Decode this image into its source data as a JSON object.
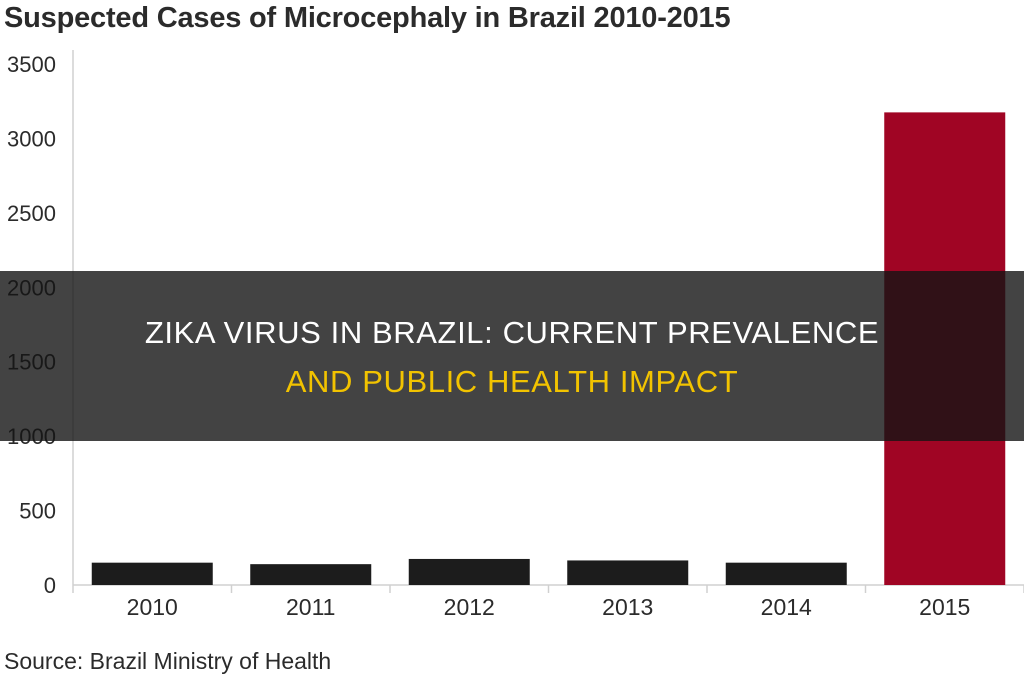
{
  "chart_data": {
    "type": "bar",
    "title": "Suspected Cases of Microcephaly in Brazil 2010-2015",
    "xlabel": "",
    "ylabel": "",
    "categories": [
      "2010",
      "2011",
      "2012",
      "2013",
      "2014",
      "2015"
    ],
    "values": [
      150,
      140,
      175,
      165,
      150,
      3175
    ],
    "ylim": [
      0,
      3500
    ],
    "yticks": [
      "0",
      "500",
      "1000",
      "1500",
      "2000",
      "2500",
      "3000",
      "3500"
    ],
    "ytick_values": [
      0,
      500,
      1000,
      1500,
      2000,
      2500,
      3000,
      3500
    ],
    "grid": false,
    "legend": "none",
    "colors": {
      "default_bar": "#1c1c1c",
      "highlight_bar": "#a00524",
      "axis": "#d0d0d0",
      "tick_text": "#2b2b2b"
    },
    "highlight_index": 5
  },
  "source": "Source: Brazil Ministry of Health",
  "overlay": {
    "line1": "ZIKA VIRUS IN BRAZIL: CURRENT PREVALENCE",
    "line2": "AND PUBLIC HEALTH IMPACT",
    "band_color": "#141414",
    "line1_color": "#ffffff",
    "line2_color": "#f2c300"
  }
}
